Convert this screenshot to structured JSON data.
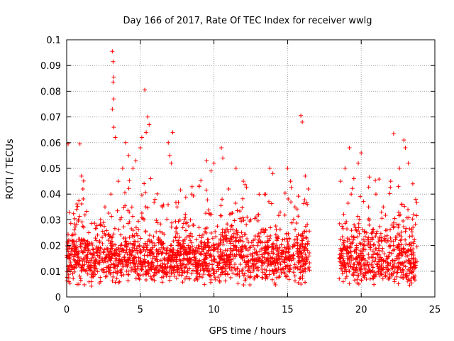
{
  "chart_data": {
    "type": "scatter",
    "title": "Day 166 of 2017, Rate Of TEC Index for receiver wwlg",
    "xlabel": "GPS time / hours",
    "ylabel": "ROTI / TECUs",
    "xlim": [
      0,
      25
    ],
    "ylim": [
      0,
      0.1
    ],
    "xticks": [
      0,
      5,
      10,
      15,
      20,
      25
    ],
    "yticks": [
      0,
      0.01,
      0.02,
      0.03,
      0.04,
      0.05,
      0.06,
      0.07,
      0.08,
      0.09,
      0.1
    ],
    "xtick_labels": [
      "0",
      "5",
      "10",
      "15",
      "20",
      "25"
    ],
    "ytick_labels": [
      "0",
      "0.01",
      "0.02",
      "0.03",
      "0.04",
      "0.05",
      "0.06",
      "0.07",
      "0.08",
      "0.09",
      "0.1"
    ],
    "grid": true,
    "legend": "none",
    "marker": "+",
    "color": "#ff0000",
    "data_gaps_hours": [
      [
        16.5,
        18.5
      ]
    ],
    "series": [
      {
        "points": [
          [
            0.1,
            0.0595
          ],
          [
            0.2,
            0.012
          ],
          [
            0.5,
            0.018
          ],
          [
            0.8,
            0.03
          ],
          [
            0.9,
            0.0595
          ],
          [
            1.0,
            0.047
          ],
          [
            1.1,
            0.042
          ],
          [
            1.5,
            0.025
          ],
          [
            2.0,
            0.022
          ],
          [
            2.3,
            0.03
          ],
          [
            2.6,
            0.035
          ],
          [
            3.0,
            0.04
          ],
          [
            3.1,
            0.0955
          ],
          [
            3.15,
            0.0915
          ],
          [
            3.2,
            0.0855
          ],
          [
            3.15,
            0.0835
          ],
          [
            3.2,
            0.077
          ],
          [
            3.1,
            0.073
          ],
          [
            3.2,
            0.066
          ],
          [
            3.3,
            0.062
          ],
          [
            3.5,
            0.045
          ],
          [
            3.8,
            0.05
          ],
          [
            4.0,
            0.06
          ],
          [
            4.2,
            0.055
          ],
          [
            4.5,
            0.05
          ],
          [
            4.7,
            0.053
          ],
          [
            5.0,
            0.058
          ],
          [
            5.1,
            0.062
          ],
          [
            5.3,
            0.0805
          ],
          [
            5.4,
            0.064
          ],
          [
            5.5,
            0.07
          ],
          [
            5.6,
            0.067
          ],
          [
            5.7,
            0.046
          ],
          [
            6.0,
            0.038
          ],
          [
            6.5,
            0.035
          ],
          [
            6.9,
            0.06
          ],
          [
            7.0,
            0.055
          ],
          [
            7.1,
            0.052
          ],
          [
            7.2,
            0.064
          ],
          [
            7.5,
            0.035
          ],
          [
            8.0,
            0.03
          ],
          [
            8.5,
            0.04
          ],
          [
            9.0,
            0.043
          ],
          [
            9.5,
            0.053
          ],
          [
            9.8,
            0.049
          ],
          [
            10.0,
            0.052
          ],
          [
            10.5,
            0.058
          ],
          [
            10.6,
            0.054
          ],
          [
            11.0,
            0.042
          ],
          [
            11.5,
            0.05
          ],
          [
            12.0,
            0.045
          ],
          [
            12.5,
            0.03
          ],
          [
            13.0,
            0.032
          ],
          [
            13.5,
            0.04
          ],
          [
            13.8,
            0.05
          ],
          [
            14.0,
            0.048
          ],
          [
            14.5,
            0.033
          ],
          [
            15.0,
            0.05
          ],
          [
            15.2,
            0.045
          ],
          [
            15.5,
            0.035
          ],
          [
            15.9,
            0.0705
          ],
          [
            16.0,
            0.068
          ],
          [
            16.2,
            0.047
          ],
          [
            16.4,
            0.042
          ],
          [
            18.6,
            0.045
          ],
          [
            18.9,
            0.05
          ],
          [
            19.2,
            0.058
          ],
          [
            19.5,
            0.046
          ],
          [
            19.8,
            0.052
          ],
          [
            20.0,
            0.056
          ],
          [
            20.5,
            0.035
          ],
          [
            21.0,
            0.04
          ],
          [
            21.5,
            0.035
          ],
          [
            22.0,
            0.045
          ],
          [
            22.2,
            0.0635
          ],
          [
            22.6,
            0.05
          ],
          [
            22.9,
            0.061
          ],
          [
            23.0,
            0.058
          ],
          [
            23.2,
            0.052
          ],
          [
            23.5,
            0.044
          ],
          [
            23.7,
            0.038
          ]
        ]
      }
    ]
  }
}
